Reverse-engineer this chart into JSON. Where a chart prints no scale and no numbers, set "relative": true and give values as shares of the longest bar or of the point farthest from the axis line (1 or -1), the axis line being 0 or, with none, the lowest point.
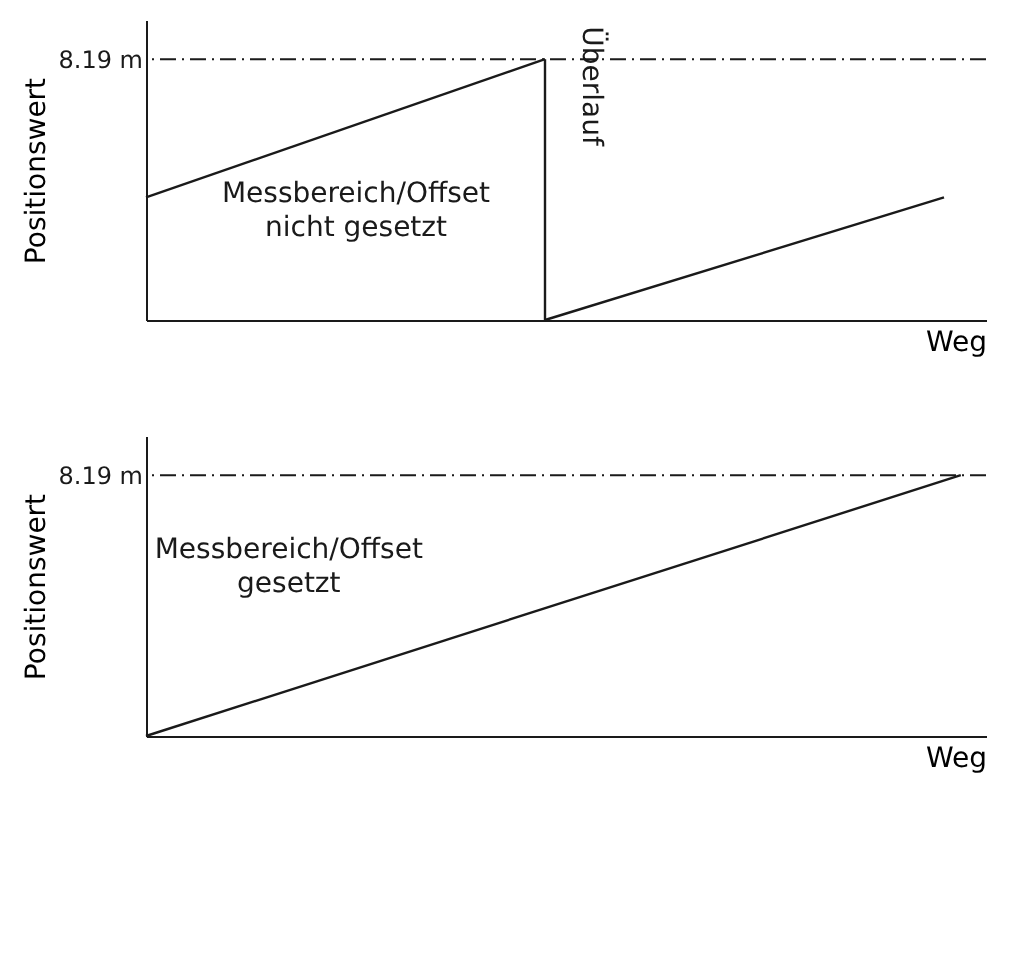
{
  "chart_data": [
    {
      "type": "line",
      "relative": true,
      "ylabel": "Positionswert",
      "xlabel": "Weg",
      "categories": [
        null,
        null,
        null
      ],
      "tick_labels": "y",
      "marker": "none",
      "line_style": "solid",
      "series": [
        {
          "color": "#1a1a1a",
          "values": [
            0.47,
            1,
            null
          ]
        },
        {
          "color": "#1a1a1a",
          "values": [
            null,
            0,
            0.47
          ]
        }
      ],
      "ref_lines": [
        {
          "axis": "y",
          "value": 1,
          "label": "8.19 m",
          "color": "#1a1a1a",
          "line_style": "dashdot"
        }
      ],
      "annotations": [
        "Messbereich/Offset\nnicht gesetzt",
        "Überlauf"
      ]
    },
    {
      "type": "line",
      "relative": true,
      "ylabel": "Positionswert",
      "xlabel": "Weg",
      "categories": [
        null,
        null
      ],
      "tick_labels": "y",
      "marker": "none",
      "line_style": "solid",
      "series": [
        {
          "color": "#1a1a1a",
          "values": [
            0,
            1
          ]
        }
      ],
      "ref_lines": [
        {
          "axis": "y",
          "value": 1,
          "label": "8.19 m",
          "color": "#1a1a1a",
          "line_style": "dashdot"
        }
      ],
      "annotations": [
        "Messbereich/Offset\ngesetzt"
      ]
    }
  ]
}
